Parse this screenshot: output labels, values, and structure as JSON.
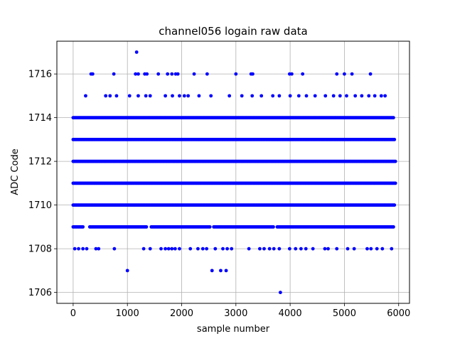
{
  "chart_data": {
    "type": "scatter",
    "title": "channel056 logain raw data",
    "xlabel": "sample number",
    "ylabel": "ADC Code",
    "xlim": [
      -300,
      6200
    ],
    "ylim": [
      1705.5,
      1717.5
    ],
    "xticks": [
      0,
      1000,
      2000,
      3000,
      4000,
      5000,
      6000
    ],
    "yticks": [
      1706,
      1708,
      1710,
      1712,
      1714,
      1716
    ],
    "grid": true,
    "marker_color": "#0000ff",
    "x_count": 5940,
    "dense_levels": [
      {
        "y": 1709,
        "x_start": 0,
        "x_end": 5920
      },
      {
        "y": 1710,
        "x_start": 0,
        "x_end": 5930
      },
      {
        "y": 1711,
        "x_start": 0,
        "x_end": 5940
      },
      {
        "y": 1712,
        "x_start": 0,
        "x_end": 5940
      },
      {
        "y": 1713,
        "x_start": 0,
        "x_end": 5930
      },
      {
        "y": 1714,
        "x_start": 0,
        "x_end": 5920
      }
    ],
    "sparse_points": [
      {
        "x": 1000,
        "y": 1707
      },
      {
        "x": 2560,
        "y": 1707
      },
      {
        "x": 2720,
        "y": 1707
      },
      {
        "x": 2820,
        "y": 1707
      },
      {
        "x": 3820,
        "y": 1706
      },
      {
        "x": 1170,
        "y": 1717
      },
      {
        "x": 30,
        "y": 1708
      },
      {
        "x": 100,
        "y": 1708
      },
      {
        "x": 180,
        "y": 1708
      },
      {
        "x": 250,
        "y": 1708
      },
      {
        "x": 420,
        "y": 1708
      },
      {
        "x": 470,
        "y": 1708
      },
      {
        "x": 760,
        "y": 1708
      },
      {
        "x": 1300,
        "y": 1708
      },
      {
        "x": 1420,
        "y": 1708
      },
      {
        "x": 1620,
        "y": 1708
      },
      {
        "x": 1700,
        "y": 1708
      },
      {
        "x": 1760,
        "y": 1708
      },
      {
        "x": 1820,
        "y": 1708
      },
      {
        "x": 1880,
        "y": 1708
      },
      {
        "x": 1960,
        "y": 1708
      },
      {
        "x": 2160,
        "y": 1708
      },
      {
        "x": 2300,
        "y": 1708
      },
      {
        "x": 2390,
        "y": 1708
      },
      {
        "x": 2460,
        "y": 1708
      },
      {
        "x": 2620,
        "y": 1708
      },
      {
        "x": 2760,
        "y": 1708
      },
      {
        "x": 2840,
        "y": 1708
      },
      {
        "x": 2920,
        "y": 1708
      },
      {
        "x": 3240,
        "y": 1708
      },
      {
        "x": 3440,
        "y": 1708
      },
      {
        "x": 3520,
        "y": 1708
      },
      {
        "x": 3620,
        "y": 1708
      },
      {
        "x": 3700,
        "y": 1708
      },
      {
        "x": 3800,
        "y": 1708
      },
      {
        "x": 3990,
        "y": 1708
      },
      {
        "x": 4100,
        "y": 1708
      },
      {
        "x": 4200,
        "y": 1708
      },
      {
        "x": 4290,
        "y": 1708
      },
      {
        "x": 4420,
        "y": 1708
      },
      {
        "x": 4640,
        "y": 1708
      },
      {
        "x": 4700,
        "y": 1708
      },
      {
        "x": 4860,
        "y": 1708
      },
      {
        "x": 5060,
        "y": 1708
      },
      {
        "x": 5180,
        "y": 1708
      },
      {
        "x": 5420,
        "y": 1708
      },
      {
        "x": 5490,
        "y": 1708
      },
      {
        "x": 5600,
        "y": 1708
      },
      {
        "x": 5700,
        "y": 1708
      },
      {
        "x": 5870,
        "y": 1708
      },
      {
        "x": 230,
        "y": 1715
      },
      {
        "x": 600,
        "y": 1715
      },
      {
        "x": 680,
        "y": 1715
      },
      {
        "x": 800,
        "y": 1715
      },
      {
        "x": 1040,
        "y": 1715
      },
      {
        "x": 1200,
        "y": 1715
      },
      {
        "x": 1340,
        "y": 1715
      },
      {
        "x": 1420,
        "y": 1715
      },
      {
        "x": 1700,
        "y": 1715
      },
      {
        "x": 1830,
        "y": 1715
      },
      {
        "x": 1960,
        "y": 1715
      },
      {
        "x": 2050,
        "y": 1715
      },
      {
        "x": 2120,
        "y": 1715
      },
      {
        "x": 2320,
        "y": 1715
      },
      {
        "x": 2540,
        "y": 1715
      },
      {
        "x": 2880,
        "y": 1715
      },
      {
        "x": 3110,
        "y": 1715
      },
      {
        "x": 3300,
        "y": 1715
      },
      {
        "x": 3470,
        "y": 1715
      },
      {
        "x": 3680,
        "y": 1715
      },
      {
        "x": 3800,
        "y": 1715
      },
      {
        "x": 4000,
        "y": 1715
      },
      {
        "x": 4160,
        "y": 1715
      },
      {
        "x": 4300,
        "y": 1715
      },
      {
        "x": 4460,
        "y": 1715
      },
      {
        "x": 4650,
        "y": 1715
      },
      {
        "x": 4800,
        "y": 1715
      },
      {
        "x": 4920,
        "y": 1715
      },
      {
        "x": 5040,
        "y": 1715
      },
      {
        "x": 5200,
        "y": 1715
      },
      {
        "x": 5320,
        "y": 1715
      },
      {
        "x": 5450,
        "y": 1715
      },
      {
        "x": 5560,
        "y": 1715
      },
      {
        "x": 5680,
        "y": 1715
      },
      {
        "x": 5750,
        "y": 1715
      },
      {
        "x": 330,
        "y": 1716
      },
      {
        "x": 360,
        "y": 1716
      },
      {
        "x": 750,
        "y": 1716
      },
      {
        "x": 1150,
        "y": 1716
      },
      {
        "x": 1200,
        "y": 1716
      },
      {
        "x": 1320,
        "y": 1716
      },
      {
        "x": 1360,
        "y": 1716
      },
      {
        "x": 1570,
        "y": 1716
      },
      {
        "x": 1740,
        "y": 1716
      },
      {
        "x": 1820,
        "y": 1716
      },
      {
        "x": 1890,
        "y": 1716
      },
      {
        "x": 1930,
        "y": 1716
      },
      {
        "x": 2230,
        "y": 1716
      },
      {
        "x": 2470,
        "y": 1716
      },
      {
        "x": 3000,
        "y": 1716
      },
      {
        "x": 3280,
        "y": 1716
      },
      {
        "x": 3310,
        "y": 1716
      },
      {
        "x": 3990,
        "y": 1716
      },
      {
        "x": 4030,
        "y": 1716
      },
      {
        "x": 4230,
        "y": 1716
      },
      {
        "x": 4860,
        "y": 1716
      },
      {
        "x": 5000,
        "y": 1716
      },
      {
        "x": 5140,
        "y": 1716
      },
      {
        "x": 5480,
        "y": 1716
      }
    ]
  }
}
